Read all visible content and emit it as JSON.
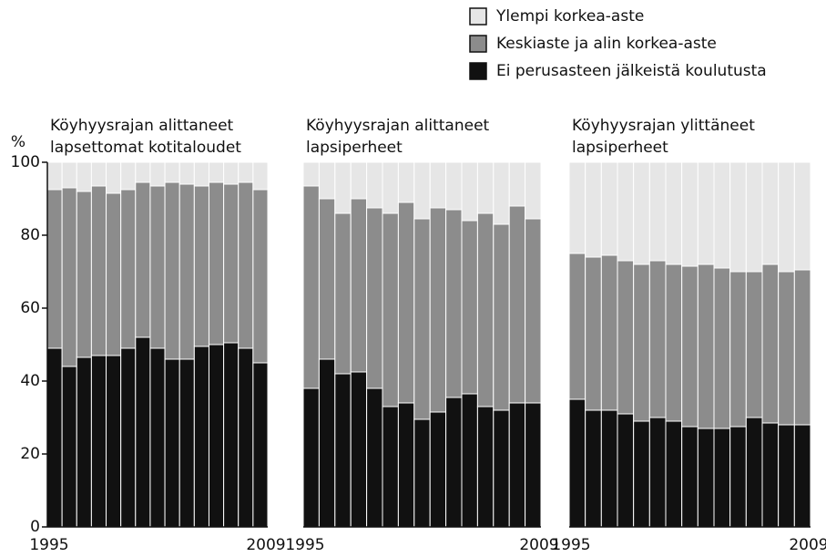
{
  "chart_data": [
    {
      "type": "bar",
      "stacked": true,
      "title": [
        "Köyhyysrajan alittaneet",
        "lapsettomat kotitaloudet"
      ],
      "y_label": "%",
      "categories": [
        "1995",
        null,
        null,
        null,
        null,
        null,
        null,
        null,
        null,
        null,
        null,
        null,
        null,
        null,
        "2009"
      ],
      "ylim": [
        0,
        100
      ],
      "yticks": [
        0,
        20,
        40,
        60,
        80,
        100
      ],
      "series": [
        {
          "name": "Ei perusasteen jälkeistä koulutusta",
          "color": "#111111",
          "values": [
            49,
            44,
            46.5,
            47,
            47,
            49,
            52,
            49,
            46,
            46,
            49.5,
            50,
            50.5,
            49,
            45
          ]
        },
        {
          "name": "Keskiaste ja alin korkea-aste",
          "color": "#8c8c8c",
          "values": [
            43.5,
            49,
            45.5,
            46.5,
            44.5,
            43.5,
            42.5,
            44.5,
            48.5,
            48,
            44,
            44.5,
            43.5,
            45.5,
            47.5
          ]
        },
        {
          "name": "Ylempi korkea-aste",
          "color": "#e6e6e6",
          "values": [
            7.5,
            7,
            8,
            6.5,
            8.5,
            7.5,
            5.5,
            6.5,
            5.5,
            6,
            6.5,
            5.5,
            6,
            5.5,
            7.5
          ]
        }
      ]
    },
    {
      "type": "bar",
      "stacked": true,
      "title": [
        "Köyhyysrajan alittaneet",
        "lapsiperheet"
      ],
      "categories": [
        "1995",
        null,
        null,
        null,
        null,
        null,
        null,
        null,
        null,
        null,
        null,
        null,
        null,
        null,
        "2009"
      ],
      "ylim": [
        0,
        100
      ],
      "series": [
        {
          "color": "#111111",
          "values": [
            38,
            46,
            42,
            42.5,
            38,
            33,
            34,
            29.5,
            31.5,
            35.5,
            36.5,
            33,
            32,
            34,
            34
          ]
        },
        {
          "color": "#8c8c8c",
          "values": [
            55.5,
            44,
            44,
            47.5,
            49.5,
            53,
            55,
            55,
            56,
            51.5,
            47.5,
            53,
            51,
            54,
            50.5
          ]
        },
        {
          "color": "#e6e6e6",
          "values": [
            6.5,
            10,
            14,
            10,
            12.5,
            14,
            11,
            15.5,
            12.5,
            13,
            16,
            14,
            17,
            12,
            15.5
          ]
        }
      ]
    },
    {
      "type": "bar",
      "stacked": true,
      "title": [
        "Köyhyysrajan ylittäneet",
        "lapsiperheet"
      ],
      "categories": [
        "1995",
        null,
        null,
        null,
        null,
        null,
        null,
        null,
        null,
        null,
        null,
        null,
        null,
        null,
        "2009"
      ],
      "ylim": [
        0,
        100
      ],
      "series": [
        {
          "color": "#111111",
          "values": [
            35,
            32,
            32,
            31,
            29,
            30,
            29,
            27.5,
            27,
            27,
            27.5,
            30,
            28.5,
            28,
            28
          ]
        },
        {
          "color": "#8c8c8c",
          "values": [
            40,
            42,
            42.5,
            42,
            43,
            43,
            43,
            44,
            45,
            44,
            42.5,
            40,
            43.5,
            42,
            42.5
          ]
        },
        {
          "color": "#e6e6e6",
          "values": [
            25,
            26,
            25.5,
            27,
            28,
            27,
            28,
            28.5,
            28,
            29,
            30,
            30,
            28,
            30,
            29.5
          ]
        }
      ]
    }
  ]
}
